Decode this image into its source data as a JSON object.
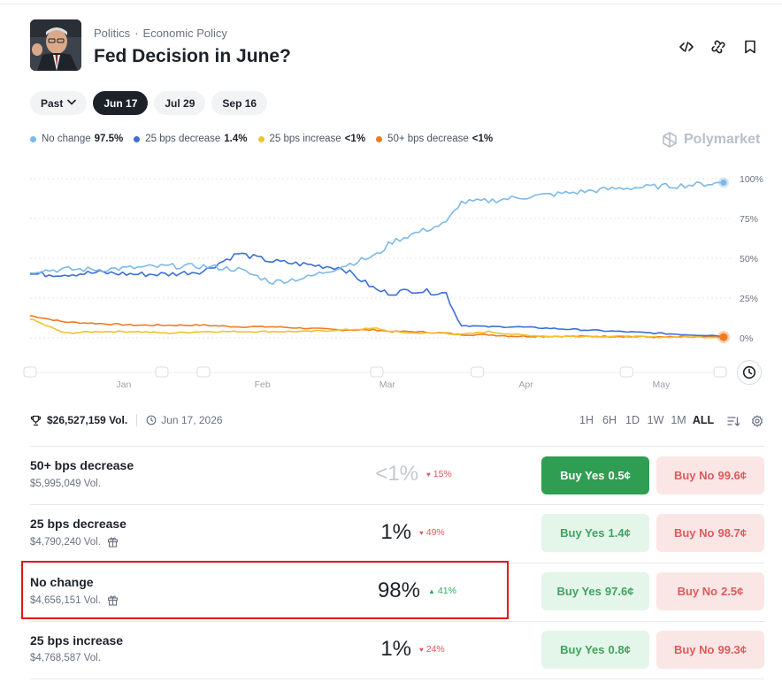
{
  "header": {
    "category": "Politics",
    "subcategory": "Economic Policy",
    "title": "Fed Decision in June?"
  },
  "date_pills": [
    {
      "label": "Past",
      "active": false
    },
    {
      "label": "Jun 17",
      "active": true
    },
    {
      "label": "Jul 29",
      "active": false
    },
    {
      "label": "Sep 16",
      "active": false
    }
  ],
  "legend": [
    {
      "name": "No change",
      "value": "97.5%",
      "color": "#7db9e8"
    },
    {
      "name": "25 bps decrease",
      "value": "1.4%",
      "color": "#3b6fd6"
    },
    {
      "name": "25 bps increase",
      "value": "<1%",
      "color": "#f2c12e"
    },
    {
      "name": "50+ bps decrease",
      "value": "<1%",
      "color": "#f07b22"
    }
  ],
  "brand": "Polymarket",
  "chart_data": {
    "type": "line",
    "x_ticks": [
      "Jan",
      "Feb",
      "Mar",
      "Apr",
      "May"
    ],
    "y_ticks": [
      "100%",
      "75%",
      "50%",
      "25%",
      "0%"
    ],
    "ylim": [
      0,
      100
    ],
    "grid": true,
    "x": [
      0,
      0.05,
      0.1,
      0.15,
      0.2,
      0.25,
      0.3,
      0.35,
      0.4,
      0.45,
      0.5,
      0.52,
      0.55,
      0.6,
      0.62,
      0.66,
      0.7,
      0.75,
      0.8,
      0.85,
      0.9,
      0.95,
      1.0
    ],
    "series": [
      {
        "name": "No change",
        "color": "#7db9e8",
        "values": [
          42,
          43,
          43,
          44,
          45,
          45,
          43,
          35,
          38,
          45,
          52,
          60,
          65,
          72,
          85,
          86,
          88,
          90,
          92,
          94,
          95,
          96,
          97.5
        ]
      },
      {
        "name": "25 bps decrease",
        "color": "#3b6fd6",
        "values": [
          40,
          40,
          41,
          40,
          40,
          42,
          53,
          48,
          46,
          44,
          30,
          28,
          30,
          28,
          8,
          7,
          7,
          6,
          5,
          4,
          3,
          2,
          1.4
        ]
      },
      {
        "name": "25 bps increase",
        "color": "#f2c12e",
        "values": [
          12,
          3,
          4,
          4,
          3,
          4,
          4,
          4,
          4,
          5,
          6,
          4,
          3,
          3,
          2,
          4,
          2,
          1,
          1,
          1,
          0.5,
          0.5,
          0.5
        ]
      },
      {
        "name": "50+ bps decrease",
        "color": "#f07b22",
        "values": [
          14,
          10,
          9,
          8,
          8,
          8,
          7,
          7,
          6,
          5,
          5,
          4,
          4,
          3,
          2,
          2,
          1,
          1,
          1,
          1,
          0.5,
          0.5,
          0.5
        ]
      }
    ]
  },
  "stats": {
    "volume": "$26,527,159 Vol.",
    "date": "Jun 17, 2026"
  },
  "ranges": [
    {
      "label": "1H",
      "active": false
    },
    {
      "label": "6H",
      "active": false
    },
    {
      "label": "1D",
      "active": false
    },
    {
      "label": "1W",
      "active": false
    },
    {
      "label": "1M",
      "active": false
    },
    {
      "label": "ALL",
      "active": true
    }
  ],
  "outcomes": [
    {
      "name": "50+ bps decrease",
      "volume": "$5,995,049 Vol.",
      "gift": false,
      "pct": "<1%",
      "faint": true,
      "change": "15%",
      "dir": "down",
      "yes_label": "Buy Yes",
      "yes_price": "0.5¢",
      "yes_solid": true,
      "no_label": "Buy No",
      "no_price": "99.6¢"
    },
    {
      "name": "25 bps decrease",
      "volume": "$4,790,240 Vol.",
      "gift": true,
      "pct": "1%",
      "faint": false,
      "change": "49%",
      "dir": "down",
      "yes_label": "Buy Yes",
      "yes_price": "1.4¢",
      "yes_solid": false,
      "no_label": "Buy No",
      "no_price": "98.7¢"
    },
    {
      "name": "No change",
      "volume": "$4,656,151 Vol.",
      "gift": true,
      "pct": "98%",
      "faint": false,
      "change": "41%",
      "dir": "up",
      "yes_label": "Buy Yes",
      "yes_price": "97.6¢",
      "yes_solid": false,
      "no_label": "Buy No",
      "no_price": "2.5¢"
    },
    {
      "name": "25 bps increase",
      "volume": "$4,768,587 Vol.",
      "gift": false,
      "pct": "1%",
      "faint": false,
      "change": "24%",
      "dir": "down",
      "yes_label": "Buy Yes",
      "yes_price": "0.8¢",
      "yes_solid": false,
      "no_label": "Buy No",
      "no_price": "99.3¢"
    }
  ]
}
